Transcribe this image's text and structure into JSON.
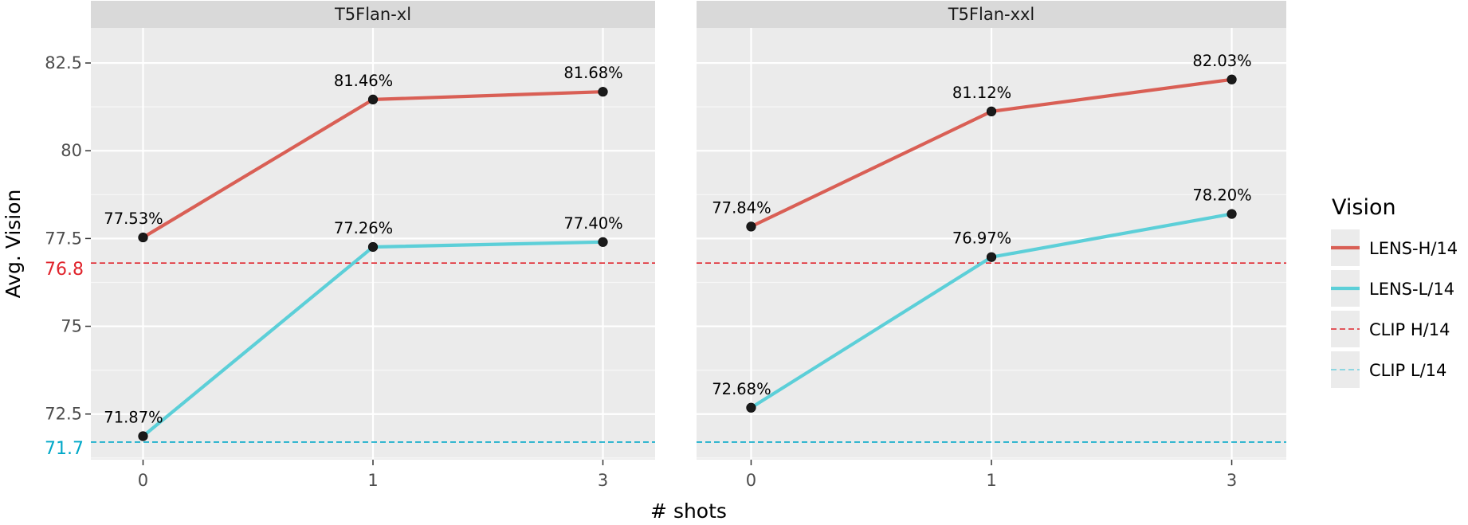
{
  "chart_data": {
    "type": "line",
    "xlabel": "# shots",
    "ylabel": "Avg. Vision",
    "x_categories": [
      "0",
      "1",
      "3"
    ],
    "ylim": [
      71.2,
      83.5
    ],
    "y_ticks": [
      72.5,
      75,
      77.5,
      80,
      82.5
    ],
    "y_tick_labels": [
      "72.5",
      "75",
      "77.5",
      "80",
      "82.5"
    ],
    "grid": true,
    "legend": {
      "title": "Vision",
      "position": "right",
      "entries": [
        {
          "label": "LENS-H/14",
          "style": "solid",
          "color": "#d95f55"
        },
        {
          "label": "LENS-L/14",
          "style": "solid",
          "color": "#5ccfd8"
        },
        {
          "label": "CLIP H/14",
          "style": "dashed",
          "color": "#e0242c"
        },
        {
          "label": "CLIP L/14",
          "style": "dashed",
          "color": "#6fd0de"
        }
      ]
    },
    "reference_lines": [
      {
        "series": "CLIP H/14",
        "y": 76.8,
        "label": "76.8",
        "color": "#e0242c"
      },
      {
        "series": "CLIP L/14",
        "y": 71.7,
        "label": "71.7",
        "color": "#00a8c8"
      }
    ],
    "panels": [
      {
        "title": "T5Flan-xl",
        "series": [
          {
            "name": "LENS-H/14",
            "color": "#d95f55",
            "values": [
              77.53,
              81.46,
              81.68
            ],
            "labels": [
              "77.53%",
              "81.46%",
              "81.68%"
            ]
          },
          {
            "name": "LENS-L/14",
            "color": "#5ccfd8",
            "values": [
              71.87,
              77.26,
              77.4
            ],
            "labels": [
              "71.87%",
              "77.26%",
              "77.40%"
            ]
          }
        ]
      },
      {
        "title": "T5Flan-xxl",
        "series": [
          {
            "name": "LENS-H/14",
            "color": "#d95f55",
            "values": [
              77.84,
              81.12,
              82.03
            ],
            "labels": [
              "77.84%",
              "81.12%",
              "82.03%"
            ]
          },
          {
            "name": "LENS-L/14",
            "color": "#5ccfd8",
            "values": [
              72.68,
              76.97,
              78.2
            ],
            "labels": [
              "72.68%",
              "76.97%",
              "78.20%"
            ]
          }
        ]
      }
    ]
  }
}
